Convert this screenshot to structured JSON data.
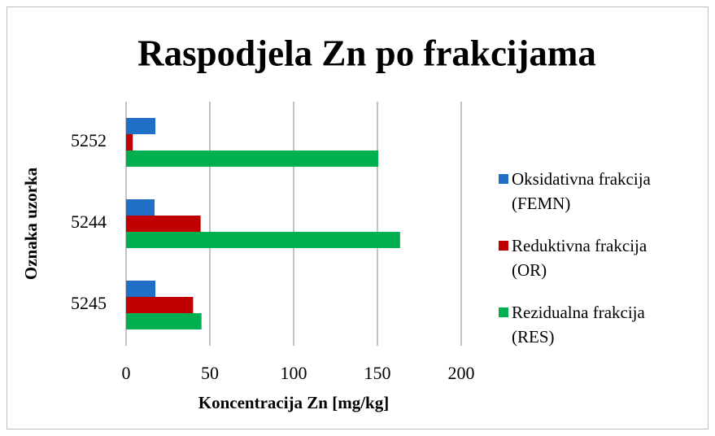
{
  "chart_data": {
    "type": "barh",
    "title": "Raspodjela Zn po frakcijama",
    "x_label": "Koncentracija Zn [mg/kg]",
    "y_label": "Oznaka uzorka",
    "categories": [
      "5245",
      "5244",
      "5252"
    ],
    "series": [
      {
        "name": "Oksidativna frakcija (FEMN)",
        "color": "#1f6fc5",
        "values": [
          17.5,
          17,
          17.5
        ]
      },
      {
        "name": "Reduktivna frakcija (OR)",
        "color": "#c00000",
        "values": [
          40,
          44.5,
          4
        ]
      },
      {
        "name": "Rezidualna frakcija (RES)",
        "color": "#00b050",
        "values": [
          45,
          163.5,
          150.5
        ]
      }
    ],
    "xlim": [
      0,
      200
    ],
    "xticks": [
      0,
      50,
      100,
      150,
      200
    ],
    "grid": true,
    "legend": "right"
  }
}
